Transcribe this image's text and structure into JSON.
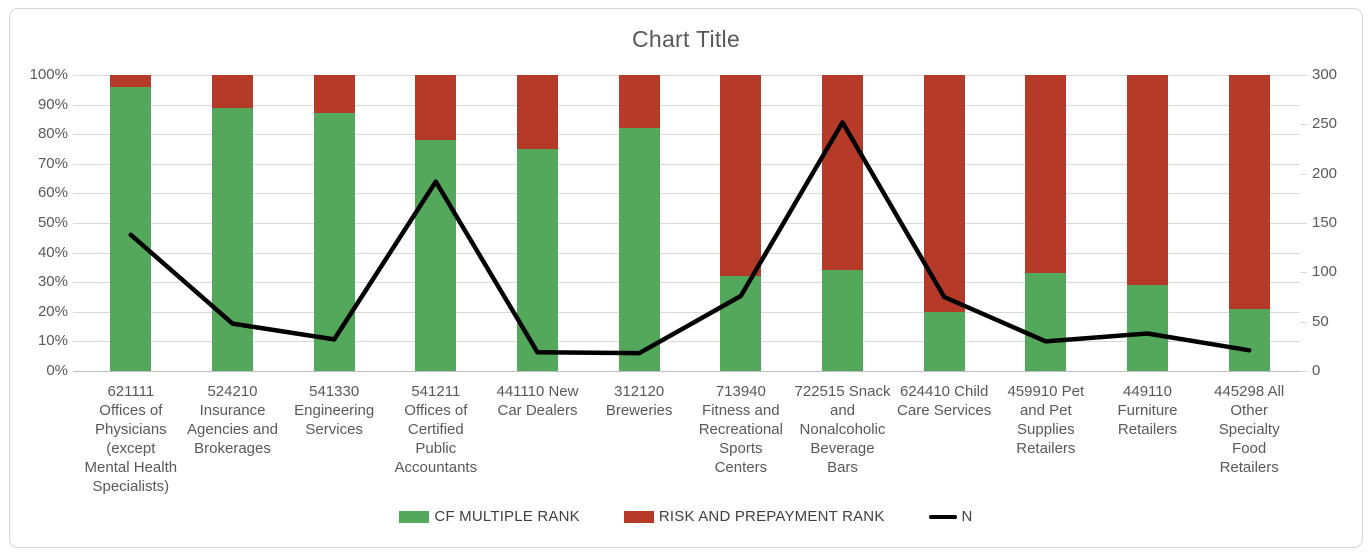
{
  "frame": {
    "background": "#ffffff",
    "border_color": "#d7d7d7"
  },
  "colors": {
    "grid": "#d9d9d9",
    "axis_line": "#bfbfbf",
    "axis_text": "#595959",
    "title_text": "#595959",
    "legend_text": "#404040"
  },
  "chart_data": {
    "type": "combo: 100% stacked bar + line (secondary axis)",
    "title": "Chart Title",
    "categories": [
      "621111 Offices of Physicians (except Mental Health Specialists)",
      "524210 Insurance Agencies and Brokerages",
      "541330 Engineering Services",
      "541211 Offices of Certified Public Accountants",
      "441110 New Car Dealers",
      "312120 Breweries",
      "713940 Fitness and Recreational Sports Centers",
      "722515 Snack and Nonalcoholic Beverage Bars",
      "624410 Child Care Services",
      "459910 Pet and Pet Supplies Retailers",
      "449110 Furniture Retailers",
      "445298 All Other Specialty Food Retailers"
    ],
    "series": [
      {
        "name": "CF MULTIPLE RANK",
        "type": "bar",
        "stack": "percent",
        "axis": "left",
        "color": "#53a85c",
        "unit": "%",
        "values": [
          96,
          89,
          87,
          78,
          75,
          82,
          32,
          34,
          20,
          33,
          29,
          21
        ]
      },
      {
        "name": "RISK AND PREPAYMENT RANK",
        "type": "bar",
        "stack": "percent",
        "axis": "left",
        "color": "#b53b28",
        "unit": "%",
        "values": [
          4,
          11,
          13,
          22,
          25,
          18,
          68,
          66,
          80,
          67,
          71,
          79
        ]
      },
      {
        "name": "N",
        "type": "line",
        "axis": "right",
        "color": "#000000",
        "values": [
          138,
          48,
          32,
          192,
          19,
          18,
          76,
          252,
          75,
          30,
          38,
          21
        ]
      }
    ],
    "left_axis": {
      "min": 0,
      "max": 100,
      "tick_step": 10,
      "tick_labels": [
        "0%",
        "10%",
        "20%",
        "30%",
        "40%",
        "50%",
        "60%",
        "70%",
        "80%",
        "90%",
        "100%"
      ]
    },
    "right_axis": {
      "min": 0,
      "max": 300,
      "tick_step": 50,
      "tick_labels": [
        "0",
        "50",
        "100",
        "150",
        "200",
        "250",
        "300"
      ]
    },
    "grid": "horizontal gridlines every 10%",
    "legend_position": "bottom"
  }
}
